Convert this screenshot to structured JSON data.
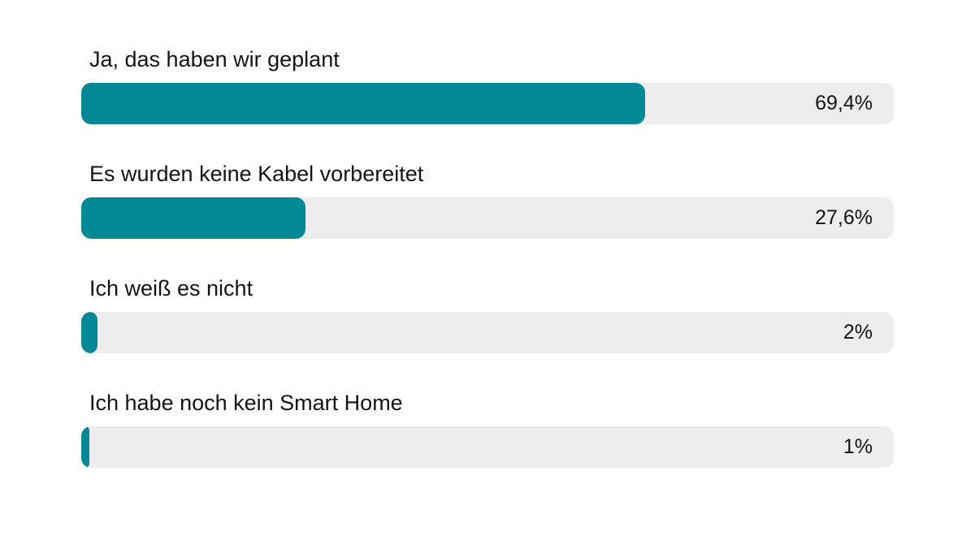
{
  "chart_data": {
    "type": "bar",
    "orientation": "horizontal",
    "categories": [
      "Ja, das haben wir geplant",
      "Es wurden keine Kabel vorbereitet",
      "Ich weiß es nicht",
      "Ich habe noch kein Smart Home"
    ],
    "values": [
      69.4,
      27.6,
      2,
      1
    ],
    "value_labels": [
      "69,4%",
      "27,6%",
      "2%",
      "1%"
    ],
    "unit": "%",
    "xlim": [
      0,
      100
    ],
    "title": "",
    "xlabel": "",
    "ylabel": "",
    "grid": false,
    "legend": "none"
  },
  "colors": {
    "fill": "#038895",
    "track": "#ededed",
    "text": "#141414"
  }
}
